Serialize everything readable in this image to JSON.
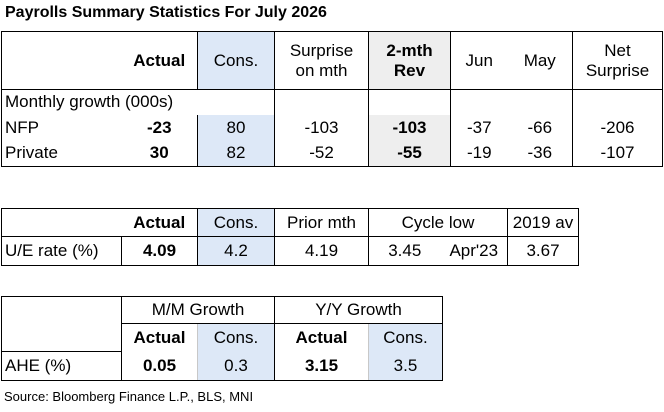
{
  "title": "Payrolls Summary Statistics For July 2026",
  "payrolls": {
    "headers": {
      "actual": "Actual",
      "cons": "Cons.",
      "surprise_1": "Surprise",
      "surprise_2": "on mth",
      "rev_1": "2-mth",
      "rev_2": "Rev",
      "jun": "Jun",
      "may": "May",
      "net_1": "Net",
      "net_2": "Surprise"
    },
    "section_label": "Monthly growth (000s)",
    "rows": [
      {
        "label": "NFP",
        "actual": "-23",
        "cons": "80",
        "surprise": "-103",
        "rev": "-103",
        "jun": "-37",
        "may": "-66",
        "net": "-206"
      },
      {
        "label": "Private",
        "actual": "30",
        "cons": "82",
        "surprise": "-52",
        "rev": "-55",
        "jun": "-19",
        "may": "-36",
        "net": "-107"
      }
    ]
  },
  "unemployment": {
    "headers": {
      "actual": "Actual",
      "cons": "Cons.",
      "prior": "Prior mth",
      "cycle_low": "Cycle low",
      "av2019": "2019 av"
    },
    "row": {
      "label": "U/E rate (%)",
      "actual": "4.09",
      "cons": "4.2",
      "prior": "4.19",
      "cycle_low": "3.45",
      "cycle_low_date": "Apr'23",
      "av2019": "3.67"
    }
  },
  "ahe": {
    "groups": {
      "mm": "M/M Growth",
      "yy": "Y/Y Growth"
    },
    "subheaders": {
      "mm_actual": "Actual",
      "mm_cons": "Cons.",
      "yy_actual": "Actual",
      "yy_cons": "Cons."
    },
    "row": {
      "label": "AHE (%)",
      "mm_actual": "0.05",
      "mm_cons": "0.3",
      "yy_actual": "3.15",
      "yy_cons": "3.5"
    }
  },
  "source": "Source: Bloomberg Finance L.P., BLS, MNI"
}
